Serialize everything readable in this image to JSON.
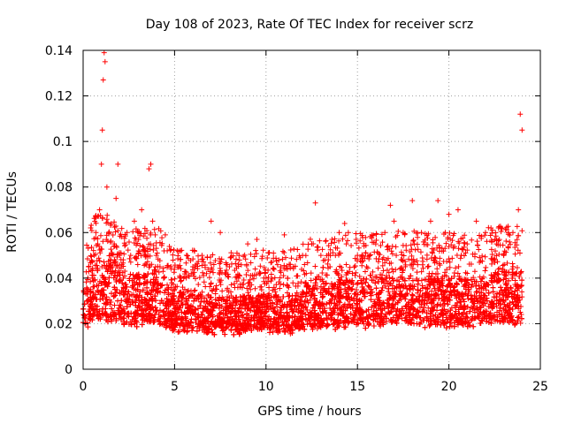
{
  "chart_data": {
    "type": "scatter",
    "title": "Day 108 of 2023, Rate Of TEC Index for receiver scrz",
    "xlabel": "GPS time / hours",
    "ylabel": "ROTI / TECUs",
    "xlim": [
      0,
      25
    ],
    "ylim": [
      0,
      0.14
    ],
    "xticks": [
      0,
      5,
      10,
      15,
      20,
      25
    ],
    "xtick_labels": [
      "0",
      "5",
      "10",
      "15",
      "20",
      "25"
    ],
    "yticks": [
      0,
      0.02,
      0.04,
      0.06,
      0.08,
      0.1,
      0.12,
      0.14
    ],
    "ytick_labels": [
      "0",
      "0.02",
      "0.04",
      "0.06",
      "0.08",
      "0.1",
      "0.12",
      "0.14"
    ],
    "grid": true,
    "marker": "+",
    "marker_color": "#ff0000",
    "series": [
      {
        "name": "ROTI",
        "description_points": "dense cloud of observations from 0 to 24 h",
        "x": [
          0.1,
          0.2,
          0.3,
          0.4,
          0.5,
          0.6,
          0.7,
          0.8,
          0.9,
          1.0,
          1.05,
          1.1,
          1.15,
          1.2,
          1.3,
          1.4,
          1.5,
          1.6,
          1.7,
          1.8,
          1.9,
          2.0,
          2.2,
          2.4,
          2.6,
          2.8,
          3.0,
          3.2,
          3.4,
          3.6,
          3.7,
          3.8,
          4.0,
          4.2,
          4.4,
          4.6,
          4.8,
          5.0,
          5.5,
          6.0,
          6.5,
          7.0,
          7.5,
          8.0,
          8.5,
          9.0,
          9.5,
          10.0,
          10.5,
          11.0,
          11.5,
          12.0,
          12.5,
          12.7,
          13.0,
          13.5,
          14.0,
          14.3,
          14.5,
          15.0,
          15.5,
          16.0,
          16.5,
          16.8,
          17.0,
          17.5,
          18.0,
          18.5,
          19.0,
          19.4,
          19.8,
          20.0,
          20.5,
          21.0,
          21.5,
          22.0,
          22.3,
          22.6,
          23.0,
          23.5,
          23.8,
          23.9,
          24.0
        ],
        "y": [
          0.02,
          0.03,
          0.045,
          0.035,
          0.04,
          0.05,
          0.06,
          0.055,
          0.07,
          0.09,
          0.105,
          0.127,
          0.139,
          0.135,
          0.08,
          0.06,
          0.05,
          0.045,
          0.055,
          0.075,
          0.09,
          0.05,
          0.04,
          0.06,
          0.05,
          0.065,
          0.06,
          0.07,
          0.05,
          0.088,
          0.09,
          0.065,
          0.05,
          0.045,
          0.04,
          0.052,
          0.045,
          0.035,
          0.04,
          0.045,
          0.05,
          0.065,
          0.06,
          0.045,
          0.04,
          0.055,
          0.057,
          0.04,
          0.035,
          0.059,
          0.045,
          0.05,
          0.055,
          0.073,
          0.05,
          0.045,
          0.06,
          0.064,
          0.06,
          0.05,
          0.045,
          0.055,
          0.06,
          0.072,
          0.065,
          0.06,
          0.074,
          0.06,
          0.065,
          0.074,
          0.06,
          0.068,
          0.07,
          0.055,
          0.065,
          0.06,
          0.062,
          0.055,
          0.05,
          0.06,
          0.07,
          0.112,
          0.105
        ]
      }
    ]
  }
}
